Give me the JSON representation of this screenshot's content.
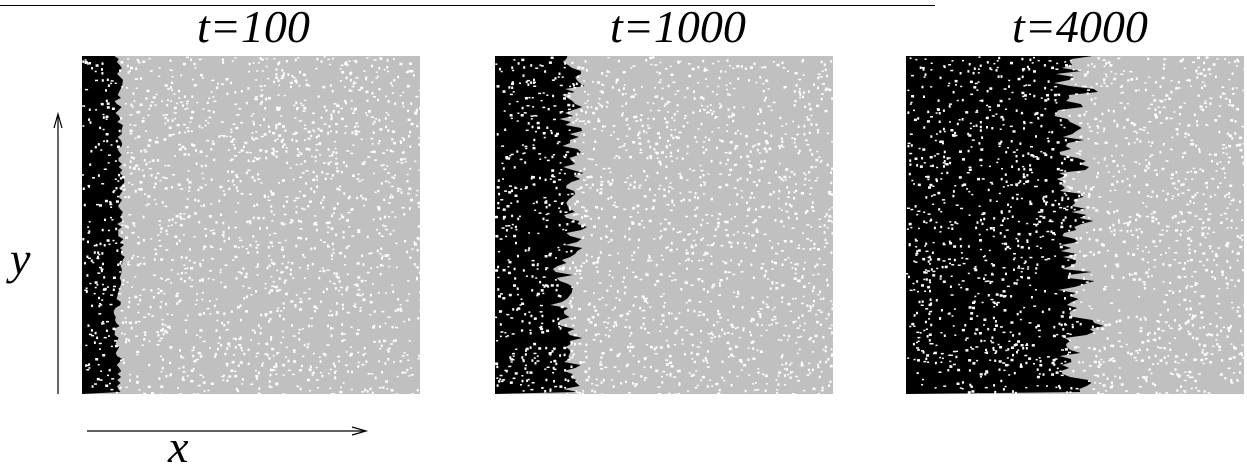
{
  "panels": [
    {
      "title": "t=100",
      "front_fraction": 0.11,
      "roughness": 0.02
    },
    {
      "title": "t=1000",
      "front_fraction": 0.22,
      "roughness": 0.06
    },
    {
      "title": "t=4000",
      "front_fraction": 0.51,
      "roughness": 0.08
    }
  ],
  "axes": {
    "y_label": "y",
    "x_label": "x"
  },
  "colors": {
    "filled": "#000000",
    "background": "#c0c0c0",
    "speckle": "#ffffff"
  }
}
